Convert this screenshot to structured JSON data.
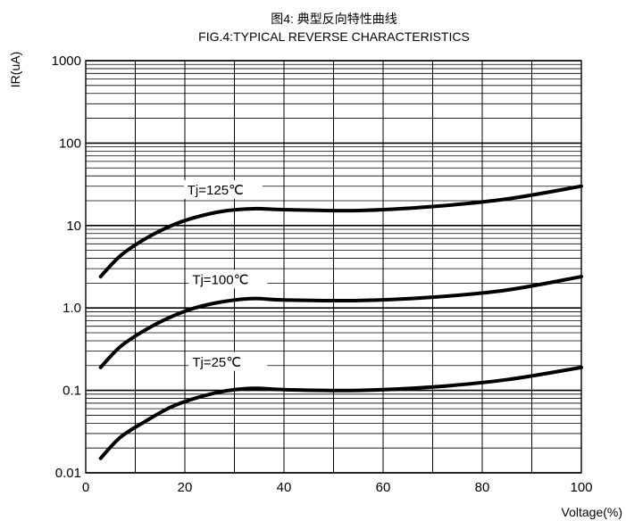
{
  "chart_data": {
    "type": "line",
    "title": "图4: 典型反向特性曲线",
    "subtitle": "FIG.4:TYPICAL REVERSE CHARACTERISTICS",
    "xlabel": "Voltage(%)",
    "ylabel": "IR(uA)",
    "xlim": [
      0,
      100
    ],
    "ylim": [
      0.01,
      1000
    ],
    "yscale": "log",
    "x_ticks": [
      "0",
      "20",
      "40",
      "60",
      "80",
      "100"
    ],
    "y_ticks": [
      "0.01",
      "0.1",
      "1.0",
      "10",
      "100",
      "1000"
    ],
    "grid": true,
    "series": [
      {
        "name": "Tj=125℃",
        "x": [
          3,
          7,
          12,
          17,
          22,
          28,
          34,
          40,
          55,
          70,
          85,
          100
        ],
        "y": [
          2.4,
          4.3,
          6.9,
          9.8,
          12.5,
          15.0,
          16.0,
          15.6,
          15.2,
          17.0,
          21.0,
          30.0
        ]
      },
      {
        "name": "Tj=100℃",
        "x": [
          3,
          7,
          12,
          17,
          22,
          28,
          34,
          40,
          55,
          70,
          85,
          100
        ],
        "y": [
          0.19,
          0.34,
          0.54,
          0.77,
          1.0,
          1.2,
          1.3,
          1.25,
          1.23,
          1.35,
          1.65,
          2.4
        ]
      },
      {
        "name": "Tj=25℃",
        "x": [
          3,
          7,
          12,
          17,
          22,
          28,
          34,
          40,
          55,
          70,
          85,
          100
        ],
        "y": [
          0.015,
          0.027,
          0.042,
          0.062,
          0.08,
          0.098,
          0.106,
          0.102,
          0.1,
          0.11,
          0.135,
          0.19
        ]
      }
    ]
  }
}
